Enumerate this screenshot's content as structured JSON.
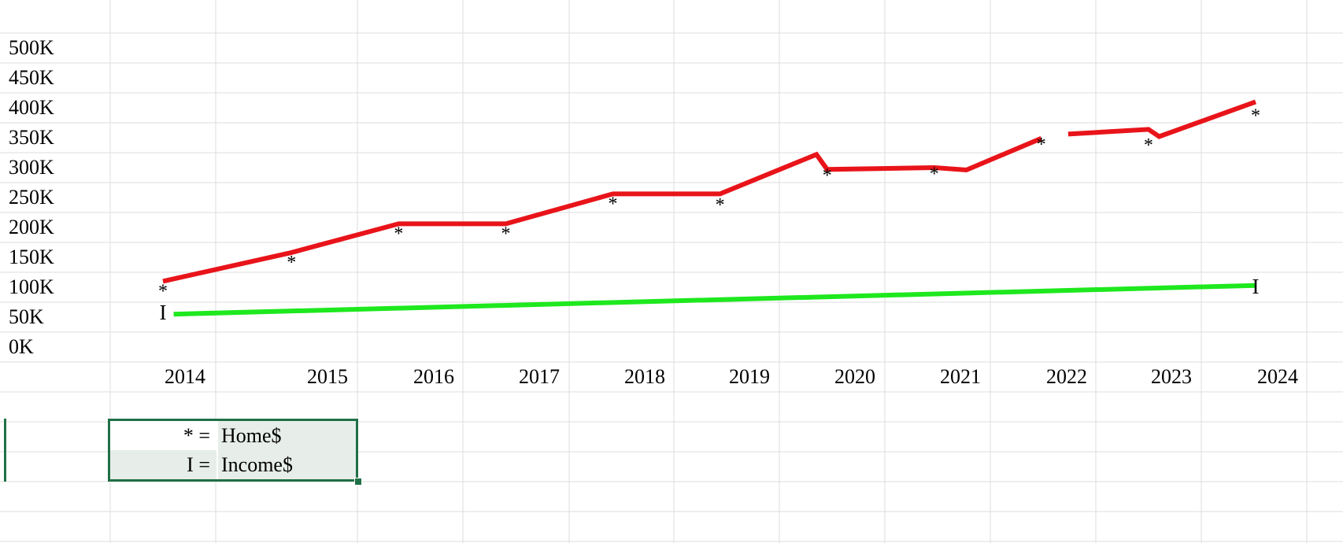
{
  "chart_data": {
    "type": "line",
    "title": "",
    "xlabel": "",
    "ylabel": "",
    "x_ticks": [
      "2014",
      "2015",
      "2016",
      "2017",
      "2018",
      "2019",
      "2020",
      "2021",
      "2022",
      "2023",
      "2024"
    ],
    "y_ticks": [
      "500K",
      "450K",
      "400K",
      "350K",
      "300K",
      "250K",
      "200K",
      "150K",
      "100K",
      "50K",
      "0K"
    ],
    "ylim": [
      0,
      500000
    ],
    "xlim": [
      2013.25,
      2025.25
    ],
    "grid": true,
    "series": [
      {
        "marker": "*",
        "color": "#e8141a",
        "points": [
          {
            "x": 2014.0,
            "y": 110000
          },
          {
            "x": 2015.2,
            "y": 158000
          },
          {
            "x": 2016.2,
            "y": 206000
          },
          {
            "x": 2017.2,
            "y": 206000
          },
          {
            "x": 2018.2,
            "y": 256000
          },
          {
            "x": 2019.2,
            "y": 256000
          },
          {
            "x": 2020.1,
            "y": 322000
          },
          {
            "x": 2020.2,
            "y": 297000
          },
          {
            "x": 2021.2,
            "y": 300000
          },
          {
            "x": 2021.5,
            "y": 296000
          },
          {
            "x": 2022.2,
            "y": 349000
          },
          {
            "x": 2022.45,
            "y": 356000
          },
          {
            "x": 2023.2,
            "y": 364000
          },
          {
            "x": 2023.3,
            "y": 352000
          },
          {
            "x": 2024.2,
            "y": 410000
          }
        ],
        "gaps_after_index": [
          10
        ]
      },
      {
        "marker": "I",
        "color": "#1ee81e",
        "points": [
          {
            "x": 2014.1,
            "y": 55000
          },
          {
            "x": 2024.2,
            "y": 103000
          }
        ]
      }
    ],
    "markers": [
      {
        "symbol": "*",
        "x": 2014.0,
        "y": 110000
      },
      {
        "symbol": "*",
        "x": 2015.2,
        "y": 158000
      },
      {
        "symbol": "*",
        "x": 2016.2,
        "y": 206000
      },
      {
        "symbol": "*",
        "x": 2017.2,
        "y": 206000
      },
      {
        "symbol": "*",
        "x": 2018.2,
        "y": 256000
      },
      {
        "symbol": "*",
        "x": 2019.2,
        "y": 254000
      },
      {
        "symbol": "*",
        "x": 2020.2,
        "y": 303000
      },
      {
        "symbol": "*",
        "x": 2021.2,
        "y": 306000
      },
      {
        "symbol": "*",
        "x": 2022.2,
        "y": 355000
      },
      {
        "symbol": "*",
        "x": 2023.2,
        "y": 354000
      },
      {
        "symbol": "*",
        "x": 2024.2,
        "y": 403000
      },
      {
        "symbol": "I",
        "x": 2014.0,
        "y": 58000
      },
      {
        "symbol": "I",
        "x": 2024.2,
        "y": 101000
      }
    ]
  },
  "legend": {
    "rows": [
      {
        "key": "* =",
        "value": "Home$"
      },
      {
        "key": "I =",
        "value": "Income$"
      }
    ]
  }
}
